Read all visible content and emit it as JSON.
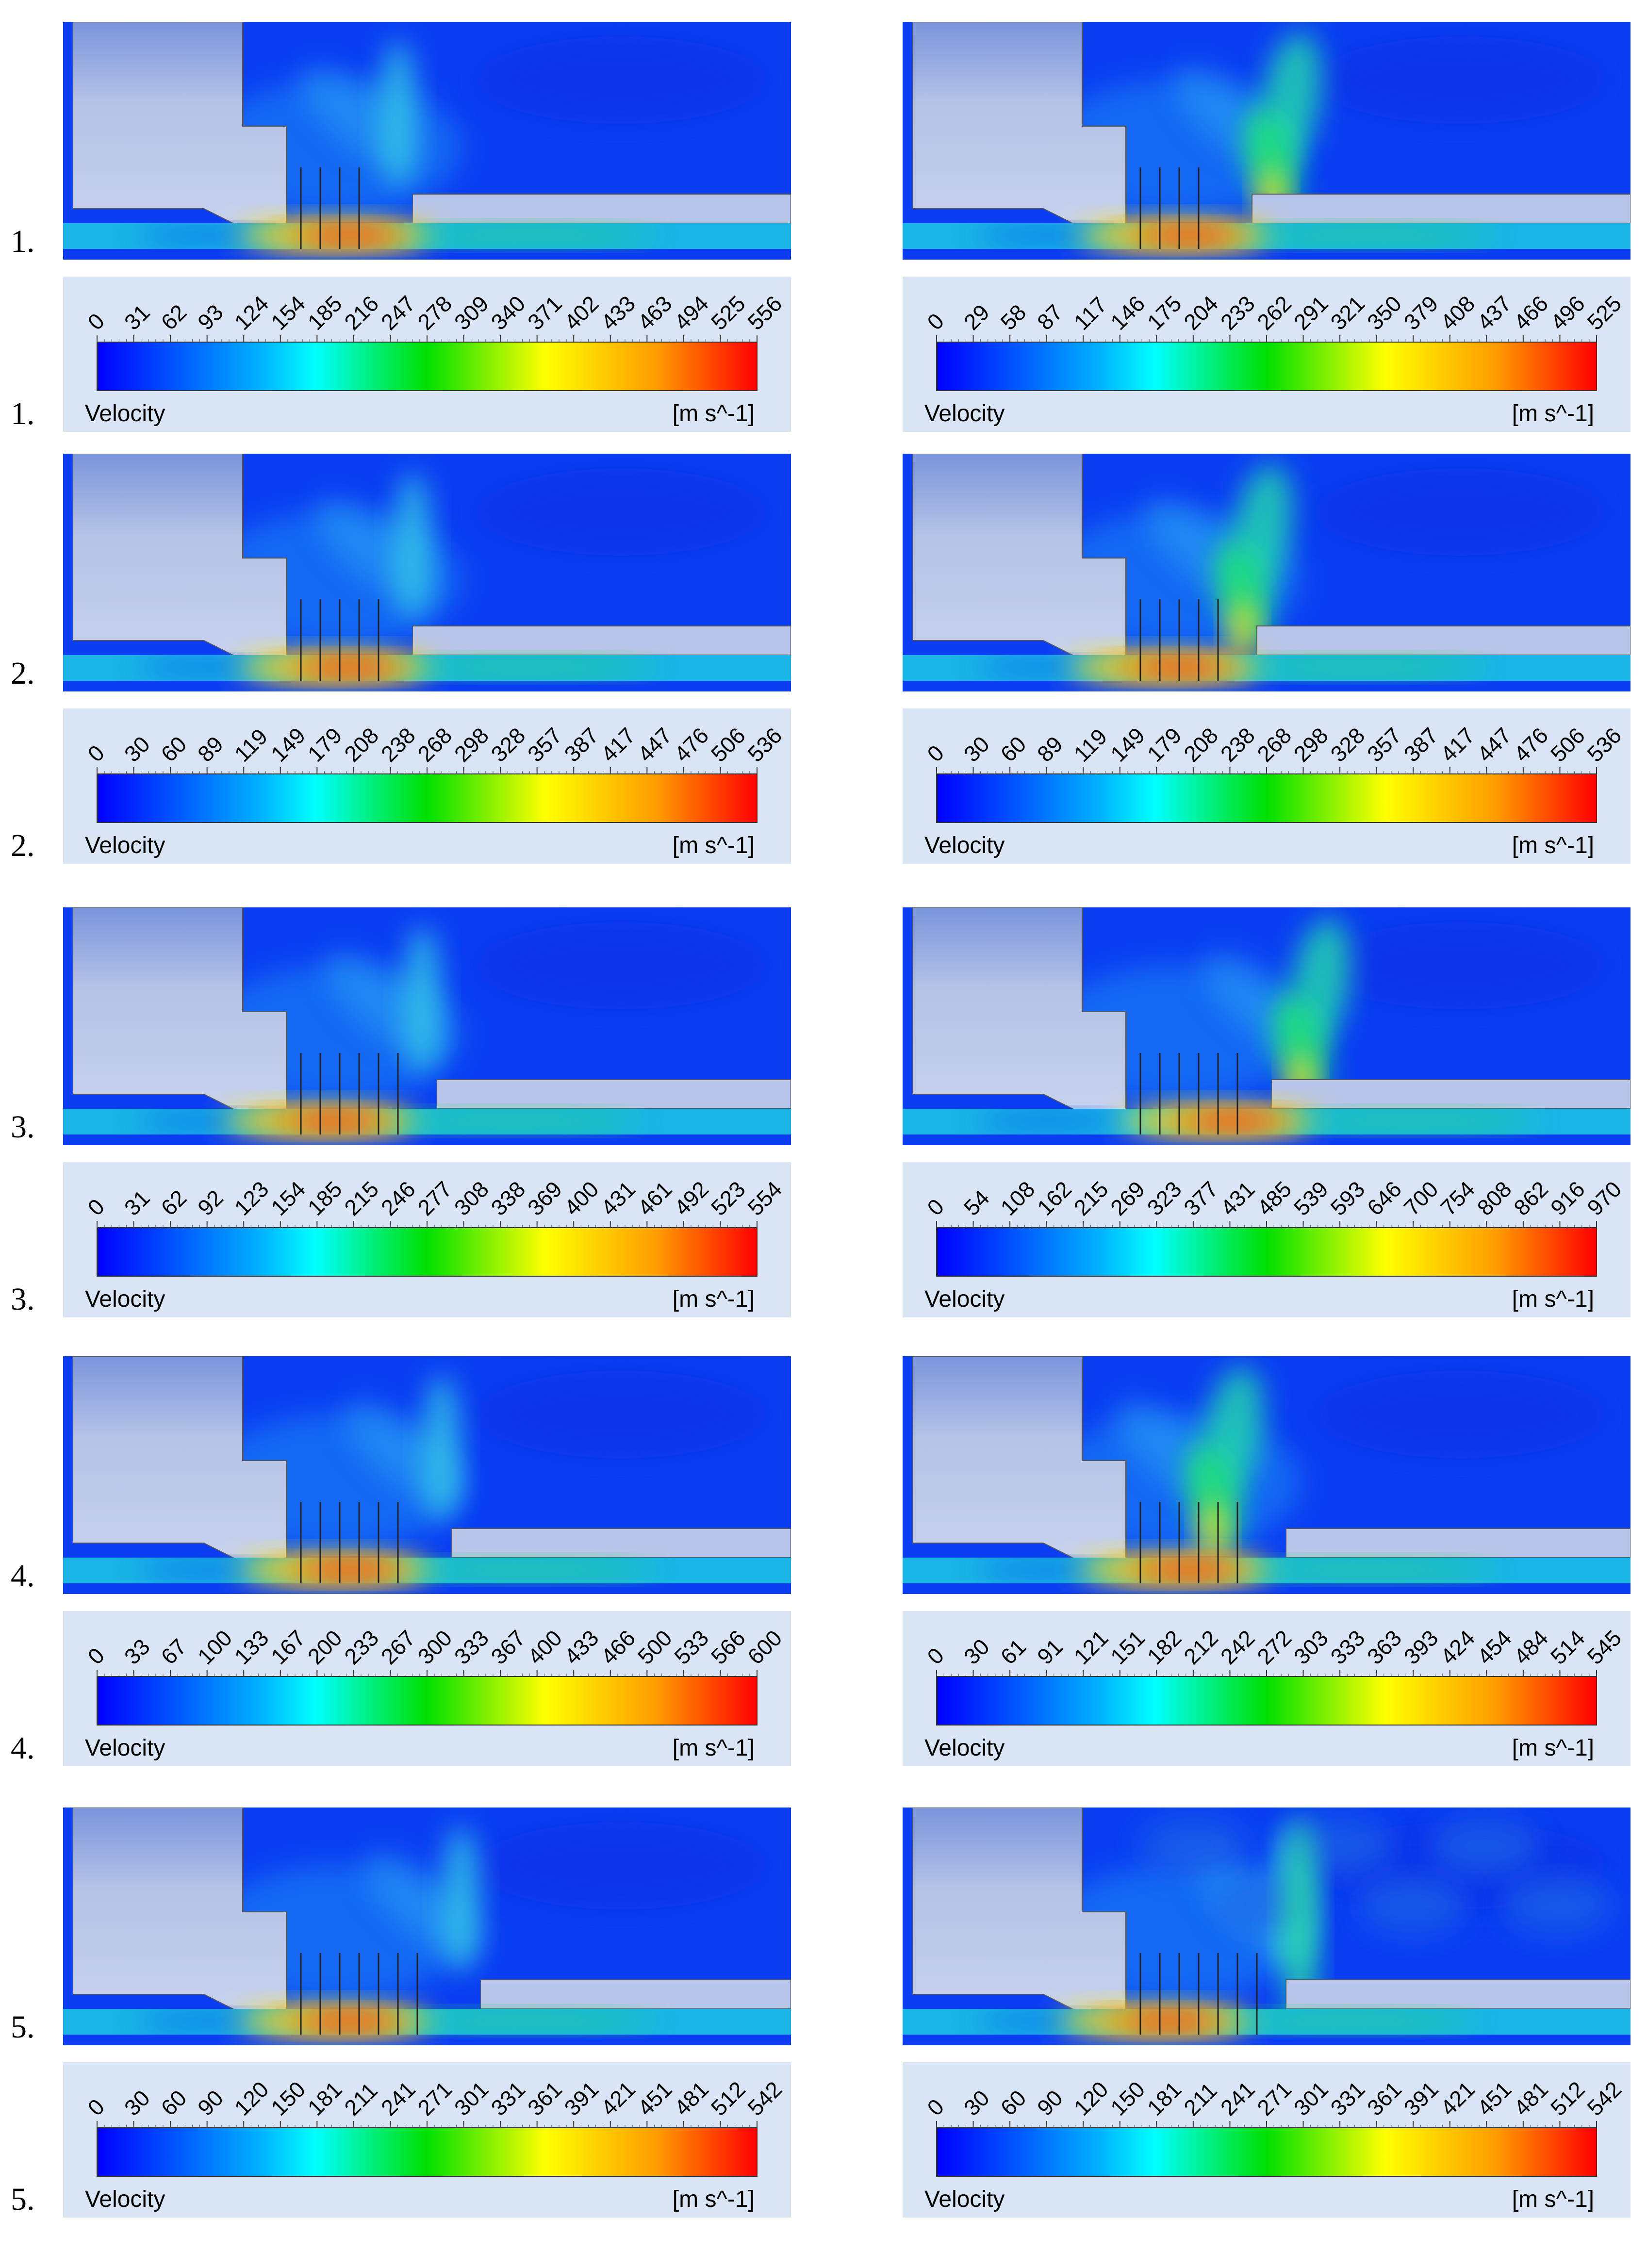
{
  "rows": [
    {
      "label_sim": "1.",
      "label_legend": "1.",
      "left": {
        "ticks": [
          "0",
          "31",
          "62",
          "93",
          "124",
          "154",
          "185",
          "216",
          "247",
          "278",
          "309",
          "340",
          "371",
          "402",
          "433",
          "463",
          "494",
          "525",
          "556"
        ],
        "variable": "Velocity",
        "unit": "[m s^-1]"
      },
      "right": {
        "ticks": [
          "0",
          "29",
          "58",
          "87",
          "117",
          "146",
          "175",
          "204",
          "233",
          "262",
          "291",
          "321",
          "350",
          "379",
          "408",
          "437",
          "466",
          "496",
          "525"
        ],
        "variable": "Velocity",
        "unit": "[m s^-1]"
      }
    },
    {
      "label_sim": "2.",
      "label_legend": "2.",
      "left": {
        "ticks": [
          "0",
          "30",
          "60",
          "89",
          "119",
          "149",
          "179",
          "208",
          "238",
          "268",
          "298",
          "328",
          "357",
          "387",
          "417",
          "447",
          "476",
          "506",
          "536"
        ],
        "variable": "Velocity",
        "unit": "[m s^-1]"
      },
      "right": {
        "ticks": [
          "0",
          "30",
          "60",
          "89",
          "119",
          "149",
          "179",
          "208",
          "238",
          "268",
          "298",
          "328",
          "357",
          "387",
          "417",
          "447",
          "476",
          "506",
          "536"
        ],
        "variable": "Velocity",
        "unit": "[m s^-1]"
      }
    },
    {
      "label_sim": "3.",
      "label_legend": "3.",
      "left": {
        "ticks": [
          "0",
          "31",
          "62",
          "92",
          "123",
          "154",
          "185",
          "215",
          "246",
          "277",
          "308",
          "338",
          "369",
          "400",
          "431",
          "461",
          "492",
          "523",
          "554"
        ],
        "variable": "Velocity",
        "unit": "[m s^-1]"
      },
      "right": {
        "ticks": [
          "0",
          "54",
          "108",
          "162",
          "215",
          "269",
          "323",
          "377",
          "431",
          "485",
          "539",
          "593",
          "646",
          "700",
          "754",
          "808",
          "862",
          "916",
          "970"
        ],
        "variable": "Velocity",
        "unit": "[m s^-1]"
      }
    },
    {
      "label_sim": "4.",
      "label_legend": "4.",
      "left": {
        "ticks": [
          "0",
          "33",
          "67",
          "100",
          "133",
          "167",
          "200",
          "233",
          "267",
          "300",
          "333",
          "367",
          "400",
          "433",
          "466",
          "500",
          "533",
          "566",
          "600"
        ],
        "variable": "Velocity",
        "unit": "[m s^-1]"
      },
      "right": {
        "ticks": [
          "0",
          "30",
          "61",
          "91",
          "121",
          "151",
          "182",
          "212",
          "242",
          "272",
          "303",
          "333",
          "363",
          "393",
          "424",
          "454",
          "484",
          "514",
          "545"
        ],
        "variable": "Velocity",
        "unit": "[m s^-1]"
      }
    },
    {
      "label_sim": "5.",
      "label_legend": "5.",
      "left": {
        "ticks": [
          "0",
          "30",
          "60",
          "90",
          "120",
          "150",
          "181",
          "211",
          "241",
          "271",
          "301",
          "331",
          "361",
          "391",
          "421",
          "451",
          "481",
          "512",
          "542"
        ],
        "variable": "Velocity",
        "unit": "[m s^-1]"
      },
      "right": {
        "ticks": [
          "0",
          "30",
          "60",
          "90",
          "120",
          "150",
          "181",
          "211",
          "241",
          "271",
          "301",
          "331",
          "361",
          "391",
          "421",
          "451",
          "481",
          "512",
          "542"
        ],
        "variable": "Velocity",
        "unit": "[m s^-1]"
      }
    }
  ]
}
